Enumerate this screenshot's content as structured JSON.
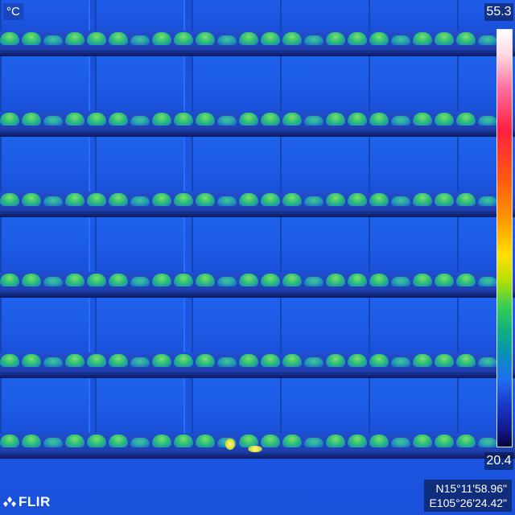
{
  "overlay": {
    "unit": "°C",
    "scale_max": "55.3",
    "scale_min": "20.4",
    "brand": "FLIR",
    "gps_lat": "N15°11'58.96\"",
    "gps_lon": "E105°26'24.42\""
  },
  "palette": {
    "background": "#1b59e6",
    "panel_edge": "#1544b6",
    "hot": "#f0e23a",
    "warm": "#2fc07a"
  },
  "icons": {
    "brand_logo": "flir-logo-icon",
    "color_scale": "temperature-color-bar"
  },
  "thermal": {
    "rows": 6,
    "description_visible": false
  }
}
